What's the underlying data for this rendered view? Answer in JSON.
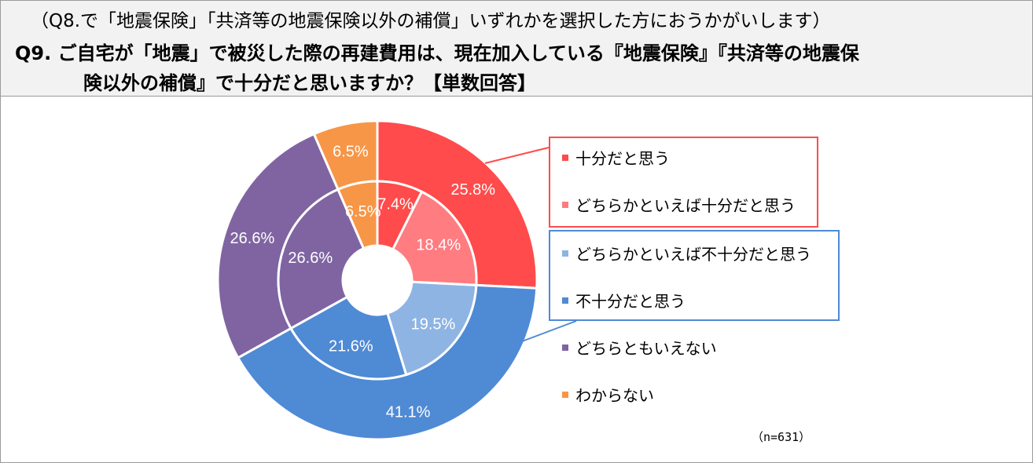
{
  "header": {
    "sub_question": "（Q8.で「地震保険」「共済等の地震保険以外の補償」いずれかを選択した方におうかがいします）",
    "question_line1": "Q9. ご自宅が「地震」で被災した際の再建費用は、現在加入している『地震保険』『共済等の地震保",
    "question_line2": "険以外の補償』で十分だと思いますか？【単数回答】"
  },
  "chart_data": {
    "type": "pie",
    "variant": "nested-donut",
    "n_label": "（n=631）",
    "outer_ring": [
      {
        "label": "25.8%",
        "value": 25.8,
        "color": "#ff4b4b"
      },
      {
        "label": "41.1%",
        "value": 41.1,
        "color": "#4f8ad5"
      },
      {
        "label": "26.6%",
        "value": 26.6,
        "color": "#8064a2"
      },
      {
        "label": "6.5%",
        "value": 6.5,
        "color": "#f79646"
      }
    ],
    "inner_ring": [
      {
        "label": "7.4%",
        "value": 7.4,
        "color": "#ff4b4b"
      },
      {
        "label": "18.4%",
        "value": 18.4,
        "color": "#ff7c80"
      },
      {
        "label": "19.5%",
        "value": 19.5,
        "color": "#8eb4e3"
      },
      {
        "label": "21.6%",
        "value": 21.6,
        "color": "#4f8ad5"
      },
      {
        "label": "26.6%",
        "value": 26.6,
        "color": "#8064a2"
      },
      {
        "label": "6.5%",
        "value": 6.5,
        "color": "#f79646"
      }
    ],
    "legend": [
      {
        "label": "十分だと思う",
        "color": "#ff4b4b"
      },
      {
        "label": "どちらかといえば十分だと思う",
        "color": "#ff7c80"
      },
      {
        "label": "どちらかといえば不十分だと思う",
        "color": "#8eb4e3"
      },
      {
        "label": "不十分だと思う",
        "color": "#4f8ad5"
      },
      {
        "label": "どちらともいえない",
        "color": "#8064a2"
      },
      {
        "label": "わからない",
        "color": "#f79646"
      }
    ],
    "group_box_colors": {
      "sufficient": "#ff4b4b",
      "insufficient": "#4f8ad5"
    }
  }
}
